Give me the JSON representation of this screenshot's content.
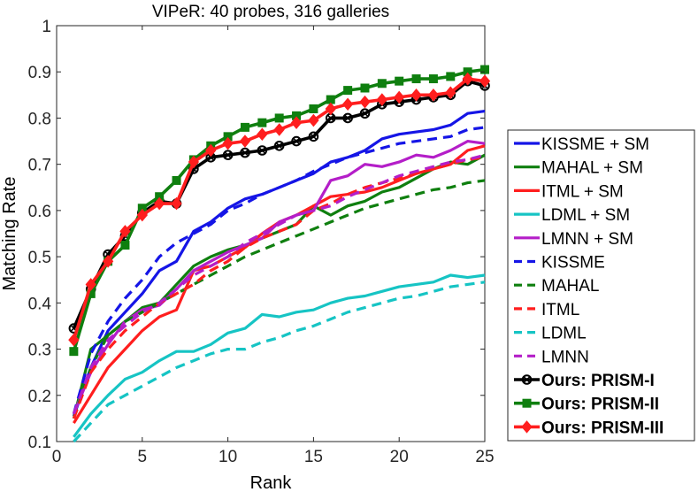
{
  "chart_data": {
    "type": "line",
    "title": "VIPeR: 40 probes, 316 galleries",
    "xlabel": "Rank",
    "ylabel": "Matching Rate",
    "xlim": [
      0,
      25
    ],
    "ylim": [
      0.1,
      1
    ],
    "xticks": [
      "0",
      "5",
      "10",
      "15",
      "20",
      "25"
    ],
    "yticks": [
      "0.1",
      "0.2",
      "0.3",
      "0.4",
      "0.5",
      "0.6",
      "0.7",
      "0.8",
      "0.9",
      "1"
    ],
    "grid": false,
    "legend_position": "right",
    "x": [
      1,
      2,
      3,
      4,
      5,
      6,
      7,
      8,
      9,
      10,
      11,
      12,
      13,
      14,
      15,
      16,
      17,
      18,
      19,
      20,
      21,
      22,
      23,
      24,
      25
    ],
    "series": [
      {
        "name": "KISSME + SM",
        "color": "#1515e6",
        "style": "solid",
        "width": 3.2,
        "marker": "none",
        "values": [
          0.155,
          0.26,
          0.34,
          0.38,
          0.42,
          0.47,
          0.49,
          0.555,
          0.575,
          0.605,
          0.625,
          0.635,
          0.65,
          0.665,
          0.68,
          0.705,
          0.715,
          0.73,
          0.755,
          0.765,
          0.77,
          0.775,
          0.785,
          0.81,
          0.815
        ]
      },
      {
        "name": "MAHAL + SM",
        "color": "#0f7f0f",
        "style": "solid",
        "width": 3.2,
        "marker": "none",
        "values": [
          0.15,
          0.3,
          0.33,
          0.36,
          0.39,
          0.4,
          0.44,
          0.48,
          0.5,
          0.515,
          0.525,
          0.54,
          0.555,
          0.57,
          0.61,
          0.59,
          0.61,
          0.62,
          0.64,
          0.65,
          0.67,
          0.69,
          0.705,
          0.7,
          0.72
        ]
      },
      {
        "name": "ITML + SM",
        "color": "#ff1e1e",
        "style": "solid",
        "width": 3.2,
        "marker": "none",
        "values": [
          0.14,
          0.2,
          0.26,
          0.3,
          0.34,
          0.37,
          0.385,
          0.47,
          0.48,
          0.5,
          0.52,
          0.55,
          0.575,
          0.59,
          0.61,
          0.63,
          0.635,
          0.64,
          0.65,
          0.665,
          0.68,
          0.69,
          0.7,
          0.73,
          0.74
        ]
      },
      {
        "name": "LDML + SM",
        "color": "#16c4c4",
        "style": "solid",
        "width": 3.2,
        "marker": "none",
        "values": [
          0.11,
          0.16,
          0.2,
          0.235,
          0.25,
          0.275,
          0.295,
          0.295,
          0.31,
          0.335,
          0.345,
          0.375,
          0.37,
          0.38,
          0.385,
          0.4,
          0.41,
          0.415,
          0.425,
          0.435,
          0.44,
          0.445,
          0.46,
          0.455,
          0.46
        ]
      },
      {
        "name": "LMNN + SM",
        "color": "#b41ec8",
        "style": "solid",
        "width": 3.2,
        "marker": "none",
        "values": [
          0.16,
          0.25,
          0.31,
          0.36,
          0.385,
          0.395,
          0.43,
          0.47,
          0.49,
          0.51,
          0.525,
          0.54,
          0.575,
          0.59,
          0.6,
          0.665,
          0.675,
          0.7,
          0.695,
          0.705,
          0.72,
          0.715,
          0.73,
          0.75,
          0.745
        ]
      },
      {
        "name": "KISSME",
        "color": "#1515e6",
        "style": "dashed",
        "width": 3.2,
        "marker": "none",
        "values": [
          0.16,
          0.29,
          0.36,
          0.41,
          0.45,
          0.5,
          0.53,
          0.55,
          0.57,
          0.6,
          0.615,
          0.635,
          0.65,
          0.665,
          0.685,
          0.7,
          0.715,
          0.725,
          0.735,
          0.745,
          0.75,
          0.755,
          0.76,
          0.775,
          0.78
        ]
      },
      {
        "name": "MAHAL",
        "color": "#0f7f0f",
        "style": "dashed",
        "width": 3.2,
        "marker": "none",
        "values": [
          0.15,
          0.26,
          0.33,
          0.36,
          0.38,
          0.4,
          0.42,
          0.44,
          0.46,
          0.48,
          0.5,
          0.515,
          0.53,
          0.545,
          0.56,
          0.575,
          0.59,
          0.605,
          0.615,
          0.625,
          0.635,
          0.645,
          0.65,
          0.66,
          0.665
        ]
      },
      {
        "name": "ITML",
        "color": "#ff1e1e",
        "style": "dashed",
        "width": 3.2,
        "marker": "none",
        "values": [
          0.15,
          0.25,
          0.3,
          0.34,
          0.37,
          0.4,
          0.42,
          0.44,
          0.47,
          0.49,
          0.52,
          0.54,
          0.555,
          0.57,
          0.6,
          0.615,
          0.635,
          0.65,
          0.66,
          0.67,
          0.68,
          0.69,
          0.7,
          0.71,
          0.715
        ]
      },
      {
        "name": "LDML",
        "color": "#16c4c4",
        "style": "dashed",
        "width": 3.2,
        "marker": "none",
        "values": [
          0.1,
          0.14,
          0.18,
          0.2,
          0.22,
          0.24,
          0.26,
          0.275,
          0.29,
          0.3,
          0.3,
          0.315,
          0.325,
          0.34,
          0.35,
          0.365,
          0.38,
          0.39,
          0.4,
          0.41,
          0.415,
          0.425,
          0.435,
          0.44,
          0.445
        ]
      },
      {
        "name": "LMNN",
        "color": "#b41ec8",
        "style": "dashed",
        "width": 3.2,
        "marker": "none",
        "values": [
          0.16,
          0.26,
          0.32,
          0.35,
          0.38,
          0.4,
          0.43,
          0.46,
          0.48,
          0.5,
          0.53,
          0.55,
          0.57,
          0.59,
          0.6,
          0.61,
          0.63,
          0.645,
          0.66,
          0.675,
          0.685,
          0.695,
          0.705,
          0.71,
          0.72
        ]
      },
      {
        "name": "Ours: PRISM-I",
        "color": "#000000",
        "style": "solid",
        "width": 3.6,
        "marker": "o",
        "values": [
          0.345,
          0.43,
          0.505,
          0.545,
          0.595,
          0.62,
          0.615,
          0.69,
          0.715,
          0.72,
          0.725,
          0.73,
          0.74,
          0.75,
          0.76,
          0.8,
          0.8,
          0.81,
          0.83,
          0.835,
          0.84,
          0.845,
          0.85,
          0.88,
          0.87
        ]
      },
      {
        "name": "Ours: PRISM-II",
        "color": "#0f7f0f",
        "style": "solid",
        "width": 3.6,
        "marker": "s",
        "values": [
          0.295,
          0.42,
          0.49,
          0.525,
          0.605,
          0.63,
          0.665,
          0.71,
          0.74,
          0.76,
          0.78,
          0.79,
          0.8,
          0.805,
          0.82,
          0.84,
          0.86,
          0.865,
          0.875,
          0.88,
          0.885,
          0.885,
          0.89,
          0.9,
          0.905
        ]
      },
      {
        "name": "Ours: PRISM-III",
        "color": "#ff1e1e",
        "style": "solid",
        "width": 3.6,
        "marker": "d",
        "values": [
          0.32,
          0.44,
          0.49,
          0.555,
          0.59,
          0.615,
          0.615,
          0.705,
          0.73,
          0.745,
          0.75,
          0.765,
          0.775,
          0.79,
          0.795,
          0.82,
          0.83,
          0.835,
          0.84,
          0.845,
          0.85,
          0.85,
          0.855,
          0.885,
          0.88
        ]
      }
    ]
  }
}
